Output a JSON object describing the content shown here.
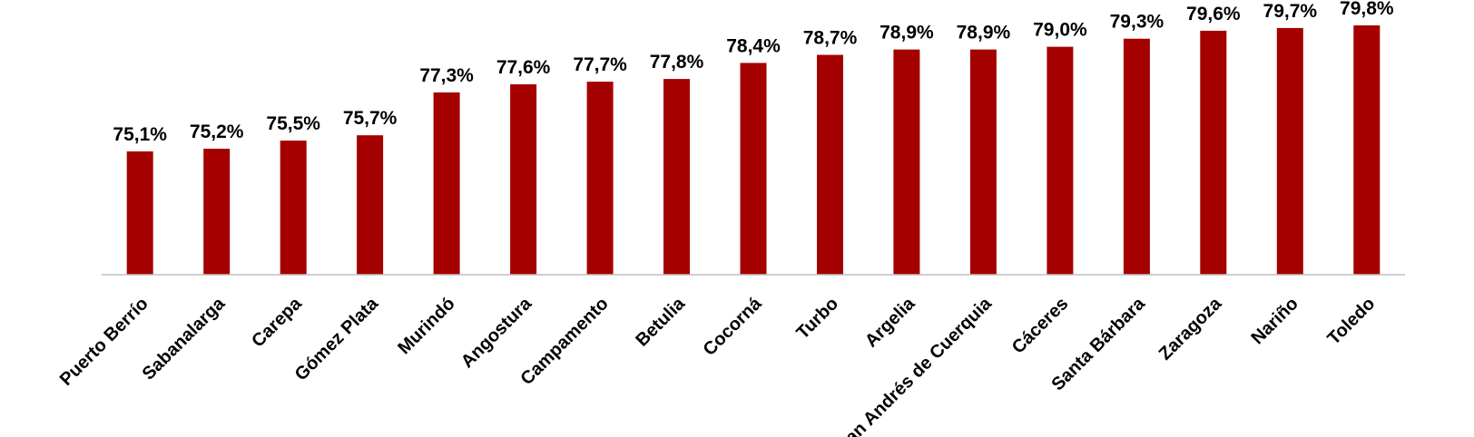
{
  "chart_data": {
    "type": "bar",
    "categories": [
      "Puerto Berrío",
      "Sabanalarga",
      "Carepa",
      "Gómez Plata",
      "Murindó",
      "Angostura",
      "Campamento",
      "Betulia",
      "Cocorná",
      "Turbo",
      "Argelia",
      "San Andrés de Cuerquia",
      "Cáceres",
      "Santa Bárbara",
      "Zaragoza",
      "Nariño",
      "Toledo"
    ],
    "values": [
      75.1,
      75.2,
      75.5,
      75.7,
      77.3,
      77.6,
      77.7,
      77.8,
      78.4,
      78.7,
      78.9,
      78.9,
      79.0,
      79.3,
      79.6,
      79.7,
      79.8
    ],
    "data_labels": [
      "75,1%",
      "75,2%",
      "75,5%",
      "75,7%",
      "77,3%",
      "77,6%",
      "77,7%",
      "77,8%",
      "78,4%",
      "78,7%",
      "78,9%",
      "78,9%",
      "79,0%",
      "79,3%",
      "79,6%",
      "79,7%",
      "79,8%"
    ],
    "title": "",
    "xlabel": "",
    "ylabel": "",
    "ylim": [
      70.5,
      80.5
    ],
    "grid": false,
    "legend": "none",
    "bar_color": "#A50000",
    "axis_color": "#BFBFBF",
    "label_color": "#000000"
  }
}
